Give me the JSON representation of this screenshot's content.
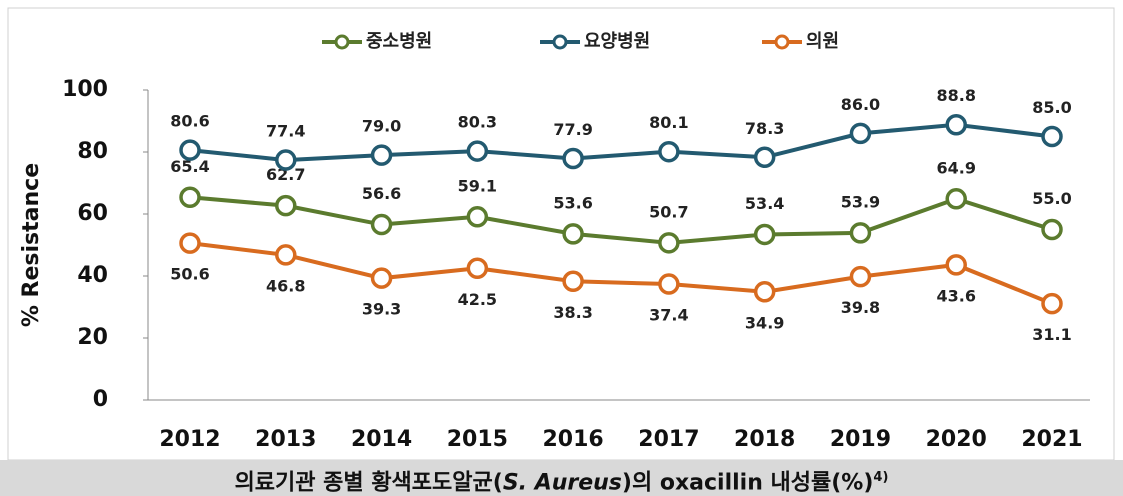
{
  "chart_data": {
    "type": "line",
    "y_label": "% Resistance",
    "categories": [
      "2012",
      "2013",
      "2014",
      "2015",
      "2016",
      "2017",
      "2018",
      "2019",
      "2020",
      "2021"
    ],
    "ylim": [
      0,
      100
    ],
    "yticks": [
      0,
      20,
      40,
      60,
      80,
      100
    ],
    "grid": false,
    "legend": "top",
    "series": [
      {
        "name": "중소병원",
        "color": "#5b7b2e",
        "values": [
          65.4,
          62.7,
          56.6,
          59.1,
          53.6,
          50.7,
          53.4,
          53.9,
          64.9,
          55.0
        ],
        "value_labels": [
          "65.4",
          "62.7",
          "56.6",
          "59.1",
          "53.6",
          "50.7",
          "53.4",
          "53.9",
          "64.9",
          "55.0"
        ]
      },
      {
        "name": "요양병원",
        "color": "#235a70",
        "values": [
          80.6,
          77.4,
          79.0,
          80.3,
          77.9,
          80.1,
          78.3,
          86.0,
          88.8,
          85.0
        ],
        "value_labels": [
          "80.6",
          "77.4",
          "79.0",
          "80.3",
          "77.9",
          "80.1",
          "78.3",
          "86.0",
          "88.8",
          "85.0"
        ]
      },
      {
        "name": "의원",
        "color": "#d86b1f",
        "values": [
          50.6,
          46.8,
          39.3,
          42.5,
          38.3,
          37.4,
          34.9,
          39.8,
          43.6,
          31.1
        ],
        "value_labels": [
          "50.6",
          "46.8",
          "39.3",
          "42.5",
          "38.3",
          "37.4",
          "34.9",
          "39.8",
          "43.6",
          "31.1"
        ]
      }
    ],
    "caption": {
      "before": "의료기관 종별 황색포도알균(",
      "italic": "S. Aureus",
      "after": ")의 oxacillin 내성률(%)",
      "superscript": "4)"
    }
  }
}
